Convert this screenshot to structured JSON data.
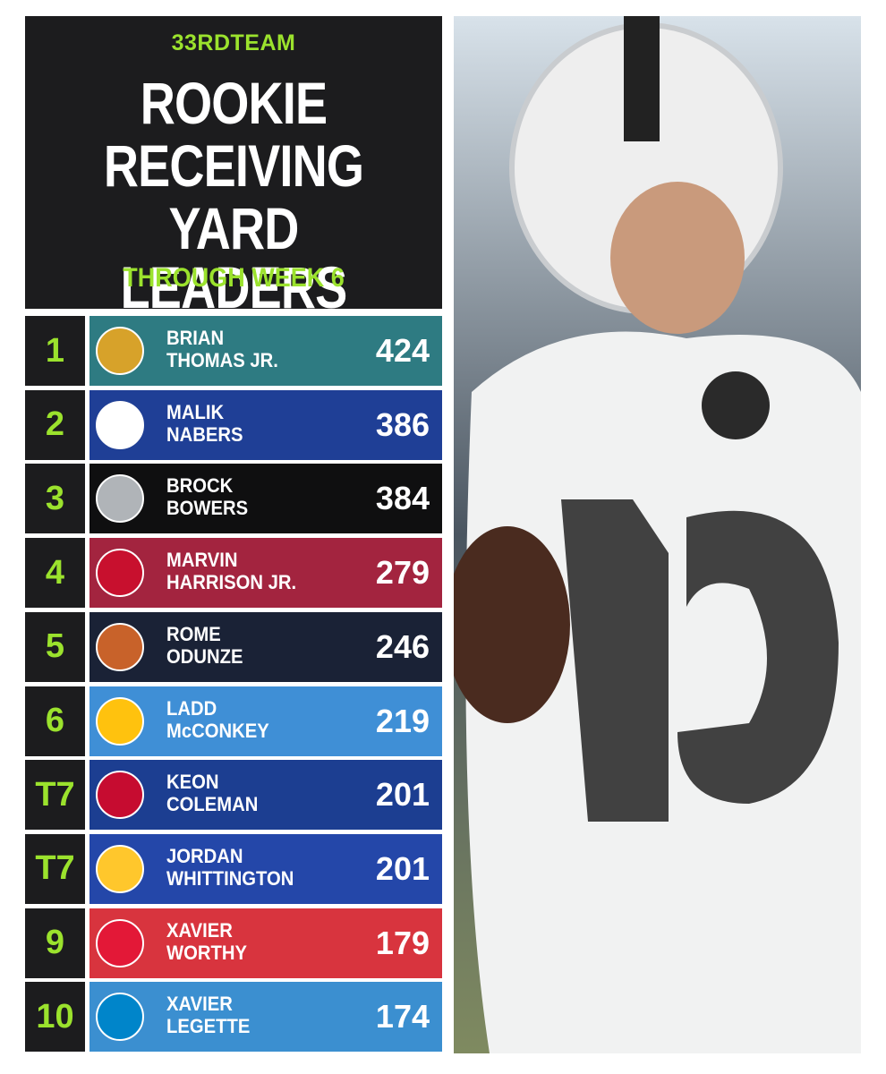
{
  "header": {
    "brand": "33RDTEAM",
    "title_lines": [
      "ROOKIE",
      "RECEIVING",
      "YARD LEADERS"
    ],
    "subtitle": "THROUGH WEEK 6"
  },
  "rows": [
    {
      "rank": "1",
      "first": "BRIAN",
      "last": "THOMAS JR.",
      "yards": 424,
      "color": "#2e7b82",
      "logo_color": "#d7a22a"
    },
    {
      "rank": "2",
      "first": "MALIK",
      "last": "NABERS",
      "yards": 386,
      "color": "#1f3f96",
      "logo_color": "#ffffff"
    },
    {
      "rank": "3",
      "first": "BROCK",
      "last": "BOWERS",
      "yards": 384,
      "color": "#0f0f10",
      "logo_color": "#b0b4b8"
    },
    {
      "rank": "4",
      "first": "MARVIN",
      "last": "HARRISON JR.",
      "yards": 279,
      "color": "#a3243f",
      "logo_color": "#c8102e"
    },
    {
      "rank": "5",
      "first": "ROME",
      "last": "ODUNZE",
      "yards": 246,
      "color": "#1a2236",
      "logo_color": "#c8622a"
    },
    {
      "rank": "6",
      "first": "LADD",
      "last": "McCONKEY",
      "yards": 219,
      "color": "#3f8fd6",
      "logo_color": "#ffc20e"
    },
    {
      "rank": "T7",
      "first": "KEON",
      "last": "COLEMAN",
      "yards": 201,
      "color": "#1c3e91",
      "logo_color": "#c60c30"
    },
    {
      "rank": "T7",
      "first": "JORDAN",
      "last": "WHITTINGTON",
      "yards": 201,
      "color": "#2447a9",
      "logo_color": "#ffc72c"
    },
    {
      "rank": "9",
      "first": "XAVIER",
      "last": "WORTHY",
      "yards": 179,
      "color": "#d8343e",
      "logo_color": "#e31837"
    },
    {
      "rank": "10",
      "first": "XAVIER",
      "last": "LEGETTE",
      "yards": 174,
      "color": "#3b8fd0",
      "logo_color": "#0085ca"
    }
  ]
}
